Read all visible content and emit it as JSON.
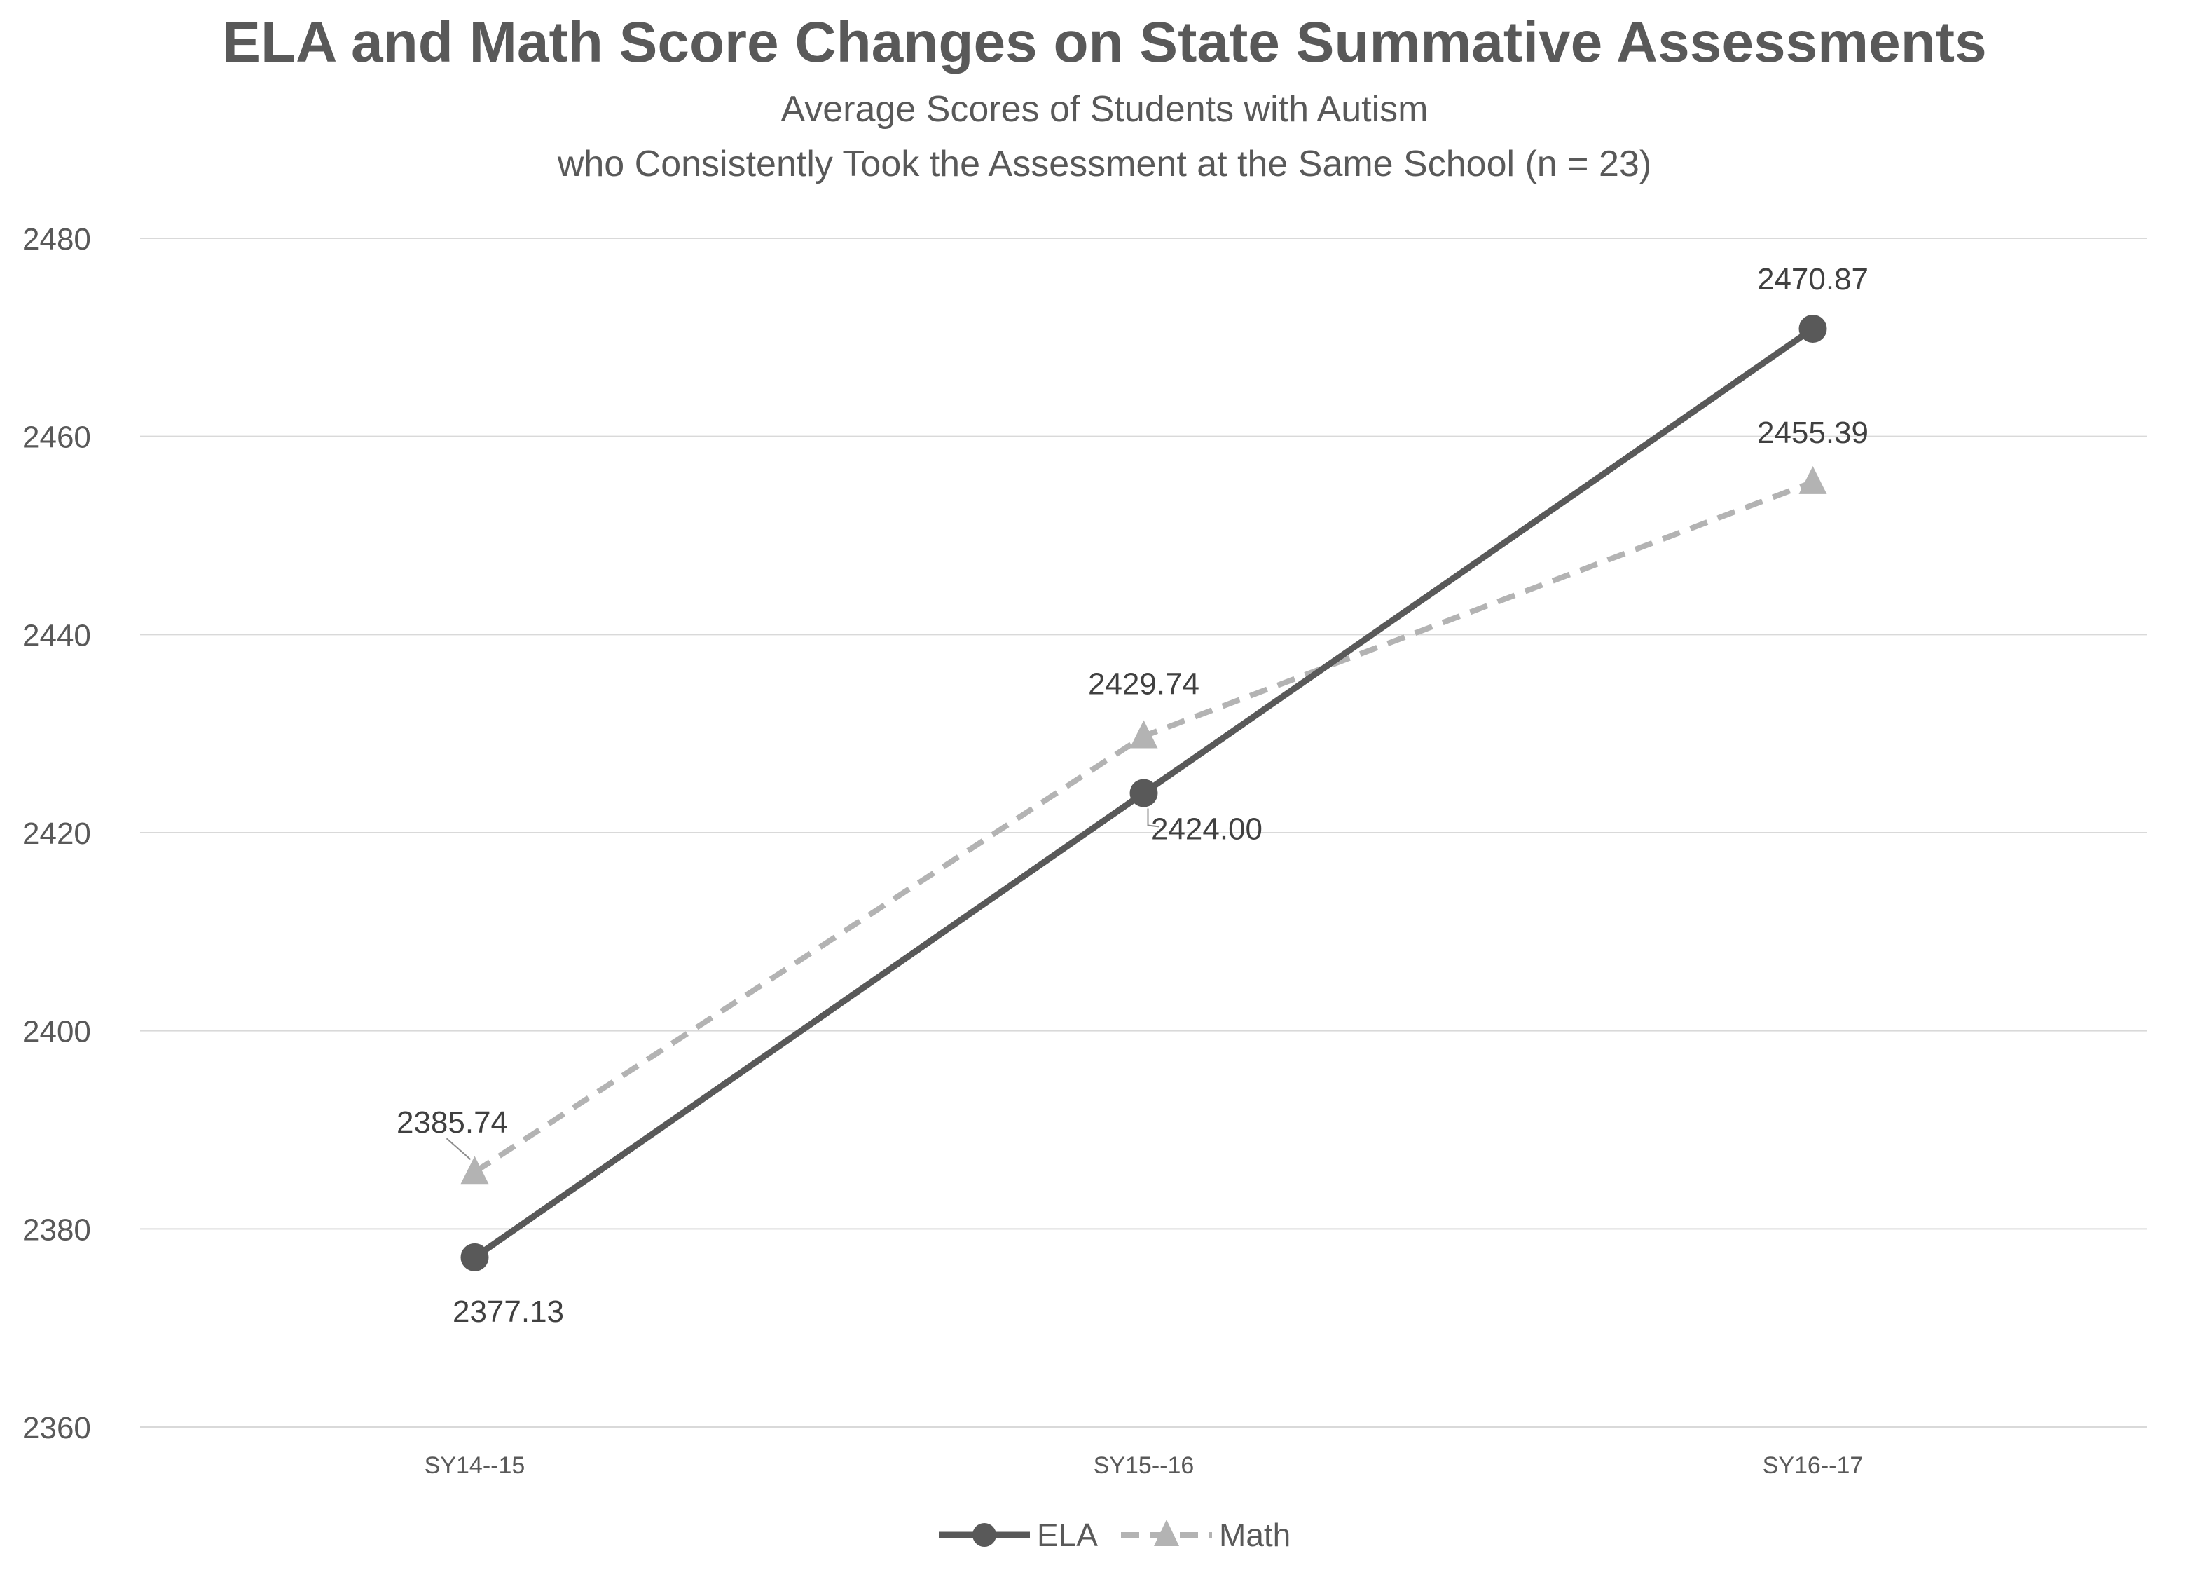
{
  "chart_data": {
    "type": "line",
    "title": "ELA and Math Score Changes on State Summative Assessments",
    "subtitle": [
      "Average Scores of Students with Autism",
      "who Consistently Took the Assessment at the Same School (n = 23)"
    ],
    "categories": [
      "SY14--15",
      "SY15--16",
      "SY16--17"
    ],
    "series": [
      {
        "name": "ELA",
        "values": [
          2377.13,
          2424.0,
          2470.87
        ],
        "labels": [
          "2377.13",
          "2424.00",
          "2470.87"
        ],
        "color": "#595959",
        "line_style": "solid",
        "marker": "circle"
      },
      {
        "name": "Math",
        "values": [
          2385.74,
          2429.74,
          2455.39
        ],
        "labels": [
          "2385.74",
          "2429.74",
          "2455.39"
        ],
        "color": "#b3b3b3",
        "line_style": "dashed",
        "marker": "triangle"
      }
    ],
    "ylim": [
      2360,
      2480
    ],
    "yticks": [
      "2360",
      "2380",
      "2400",
      "2420",
      "2440",
      "2460",
      "2480"
    ],
    "grid": true,
    "legend_position": "bottom",
    "colors": {
      "gridline": "#d9d9d9",
      "text": "#595959",
      "label": "#404040"
    }
  }
}
